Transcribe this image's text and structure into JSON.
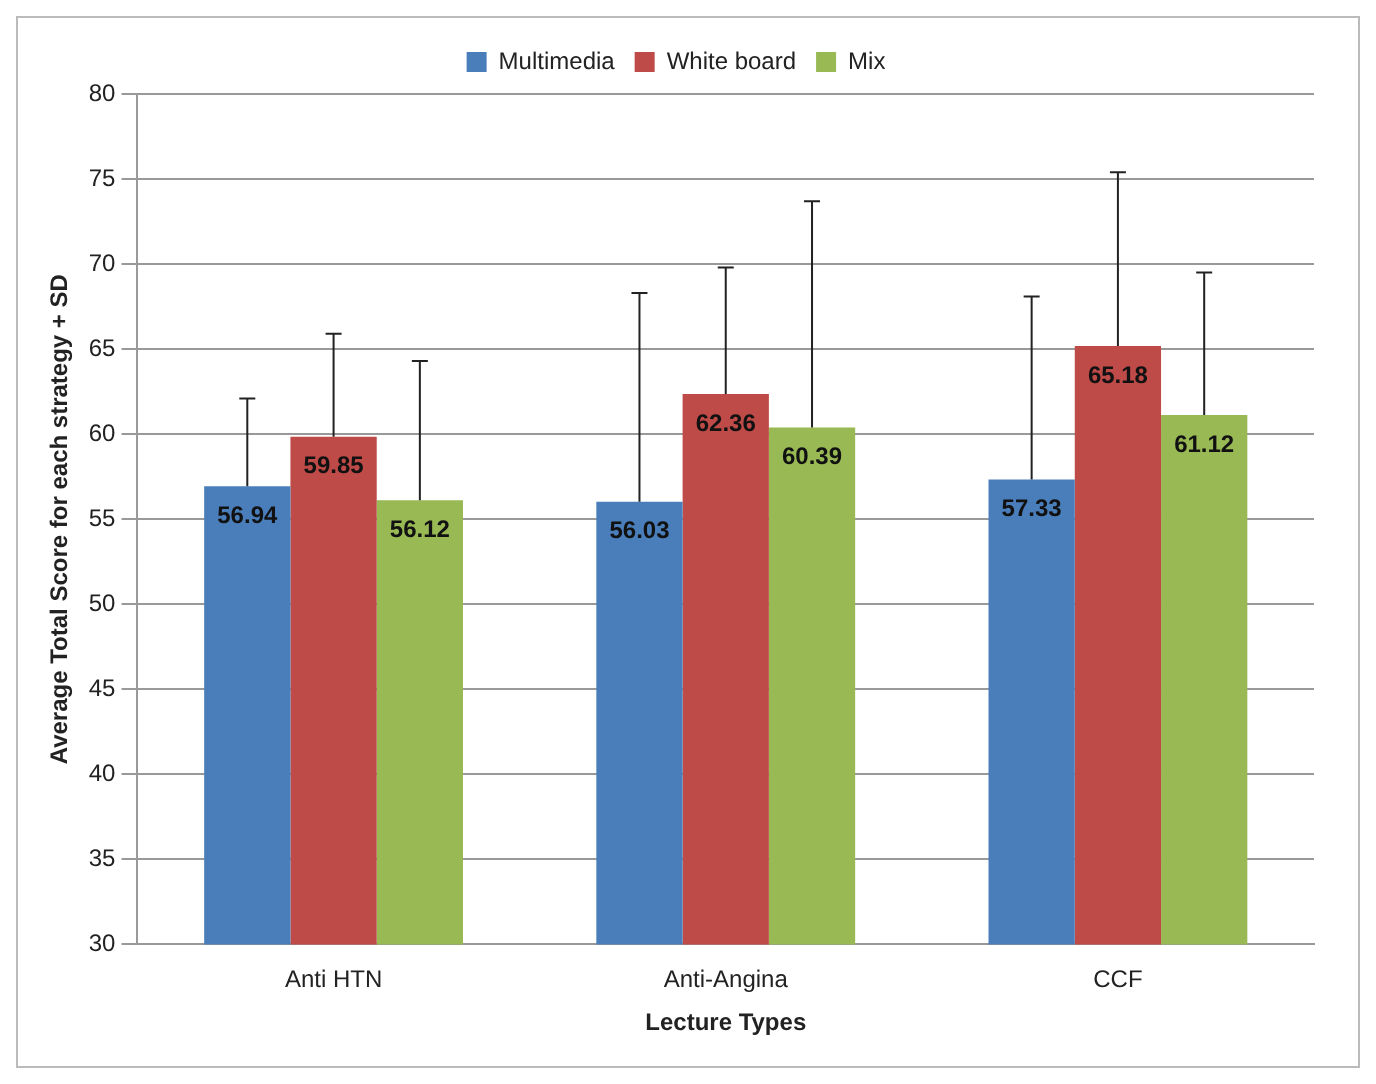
{
  "chart_data": {
    "type": "bar",
    "xlabel": "Lecture Types",
    "ylabel": "Average Total Score for each strategy + SD",
    "categories": [
      "Anti HTN",
      "Anti-Angina",
      "CCF"
    ],
    "series": [
      {
        "name": "Multimedia",
        "color": "#4a7ebb",
        "values": [
          56.94,
          56.03,
          57.33
        ],
        "errors": [
          [
            56.94,
            62.1
          ],
          [
            56.03,
            68.3
          ],
          [
            57.33,
            68.1
          ]
        ]
      },
      {
        "name": "White board",
        "color": "#be4b48",
        "values": [
          59.85,
          62.36,
          65.18
        ],
        "errors": [
          [
            59.85,
            65.9
          ],
          [
            62.36,
            69.8
          ],
          [
            65.18,
            75.4
          ]
        ]
      },
      {
        "name": "Mix",
        "color": "#98b954",
        "values": [
          56.12,
          60.39,
          61.12
        ],
        "errors": [
          [
            56.12,
            64.3
          ],
          [
            60.39,
            73.7
          ],
          [
            61.12,
            69.5
          ]
        ]
      }
    ],
    "ylim": [
      30,
      80
    ],
    "yticks": [
      30,
      35,
      40,
      45,
      50,
      55,
      60,
      65,
      70,
      75,
      80
    ],
    "grid": "y",
    "legend": "top",
    "data_labels": true
  }
}
